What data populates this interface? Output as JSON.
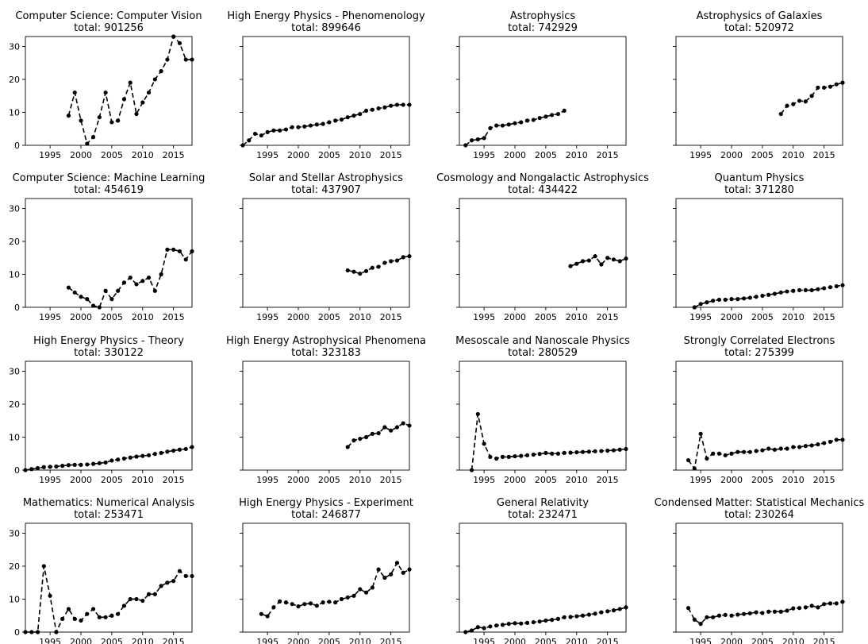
{
  "figure": {
    "yticks": [
      0,
      10,
      20,
      30
    ],
    "xticks": [
      1995,
      2000,
      2005,
      2010,
      2015
    ],
    "style": {
      "line_color": "#000000",
      "line_style": "dashed",
      "marker": "dot"
    }
  },
  "chart_data": [
    {
      "type": "line",
      "title": "Computer Science: Computer Vision",
      "subtitle": "total: 901256",
      "xlim": [
        1991,
        2018
      ],
      "ylim": [
        0,
        33
      ],
      "series": [
        {
          "x": [
            1998,
            1999,
            2000,
            2001,
            2002,
            2003,
            2004,
            2005,
            2006,
            2007,
            2008,
            2009,
            2010,
            2011,
            2012,
            2013,
            2014,
            2015,
            2016,
            2017,
            2018
          ],
          "y": [
            9,
            16,
            7.5,
            0.5,
            2.5,
            8.5,
            16,
            7,
            7.5,
            14,
            19,
            9.5,
            13,
            16,
            20,
            22.5,
            26,
            33,
            31,
            26,
            26
          ]
        }
      ]
    },
    {
      "type": "line",
      "title": "High Energy Physics - Phenomenology",
      "subtitle": "total: 899646",
      "xlim": [
        1991,
        2018
      ],
      "ylim": [
        0,
        33
      ],
      "series": [
        {
          "x": [
            1991,
            1992,
            1993,
            1994,
            1995,
            1996,
            1997,
            1998,
            1999,
            2000,
            2001,
            2002,
            2003,
            2004,
            2005,
            2006,
            2007,
            2008,
            2009,
            2010,
            2011,
            2012,
            2013,
            2014,
            2015,
            2016,
            2017,
            2018
          ],
          "y": [
            0,
            1.5,
            3.5,
            3,
            4,
            4.5,
            4.5,
            4.8,
            5.5,
            5.5,
            5.7,
            6,
            6.3,
            6.5,
            7,
            7.5,
            7.8,
            8.5,
            9,
            9.5,
            10.5,
            10.8,
            11.2,
            11.5,
            12,
            12.3,
            12.3,
            12.3
          ]
        }
      ]
    },
    {
      "type": "line",
      "title": "Astrophysics",
      "subtitle": "total: 742929",
      "xlim": [
        1991,
        2018
      ],
      "ylim": [
        0,
        33
      ],
      "series": [
        {
          "x": [
            1992,
            1993,
            1994,
            1995,
            1996,
            1997,
            1998,
            1999,
            2000,
            2001,
            2002,
            2003,
            2004,
            2005,
            2006,
            2007,
            2008
          ],
          "y": [
            0,
            1.5,
            1.8,
            2.2,
            5.2,
            6,
            6,
            6.3,
            6.7,
            7,
            7.5,
            7.7,
            8.3,
            8.7,
            9.2,
            9.5,
            10.5
          ]
        }
      ]
    },
    {
      "type": "line",
      "title": "Astrophysics of Galaxies",
      "subtitle": "total: 520972",
      "xlim": [
        1991,
        2018
      ],
      "ylim": [
        0,
        33
      ],
      "series": [
        {
          "x": [
            2008,
            2009,
            2010,
            2011,
            2012,
            2013,
            2014,
            2015,
            2016,
            2017,
            2018
          ],
          "y": [
            9.5,
            12,
            12.5,
            13.5,
            13.3,
            15,
            17.5,
            17.5,
            17.8,
            18.5,
            19
          ]
        }
      ]
    },
    {
      "type": "line",
      "title": "Computer Science: Machine Learning",
      "subtitle": "total: 454619",
      "xlim": [
        1991,
        2018
      ],
      "ylim": [
        0,
        33
      ],
      "series": [
        {
          "x": [
            1998,
            1999,
            2000,
            2001,
            2002,
            2003,
            2004,
            2005,
            2006,
            2007,
            2008,
            2009,
            2010,
            2011,
            2012,
            2013,
            2014,
            2015,
            2016,
            2017,
            2018
          ],
          "y": [
            6,
            4.5,
            3.2,
            2.5,
            0.5,
            0,
            5,
            2.5,
            5,
            7.5,
            9,
            7,
            8,
            9,
            5,
            10,
            17.5,
            17.5,
            17,
            14.5,
            17
          ]
        }
      ]
    },
    {
      "type": "line",
      "title": "Solar and Stellar Astrophysics",
      "subtitle": "total: 437907",
      "xlim": [
        1991,
        2018
      ],
      "ylim": [
        0,
        33
      ],
      "series": [
        {
          "x": [
            2008,
            2009,
            2010,
            2011,
            2012,
            2013,
            2014,
            2015,
            2016,
            2017,
            2018
          ],
          "y": [
            11.2,
            10.8,
            10.2,
            11,
            12,
            12.3,
            13.5,
            14,
            14.2,
            15.2,
            15.5
          ]
        }
      ]
    },
    {
      "type": "line",
      "title": "Cosmology and Nongalactic Astrophysics",
      "subtitle": "total: 434422",
      "xlim": [
        1991,
        2018
      ],
      "ylim": [
        0,
        33
      ],
      "series": [
        {
          "x": [
            2009,
            2010,
            2011,
            2012,
            2013,
            2014,
            2015,
            2016,
            2017,
            2018
          ],
          "y": [
            12.5,
            13.2,
            14,
            14.2,
            15.5,
            13,
            15,
            14.5,
            14,
            14.8
          ]
        }
      ]
    },
    {
      "type": "line",
      "title": "Quantum Physics",
      "subtitle": "total: 371280",
      "xlim": [
        1991,
        2018
      ],
      "ylim": [
        0,
        33
      ],
      "series": [
        {
          "x": [
            1994,
            1995,
            1996,
            1997,
            1998,
            1999,
            2000,
            2001,
            2002,
            2003,
            2004,
            2005,
            2006,
            2007,
            2008,
            2009,
            2010,
            2011,
            2012,
            2013,
            2014,
            2015,
            2016,
            2017,
            2018
          ],
          "y": [
            0,
            1,
            1.5,
            2,
            2.3,
            2.3,
            2.5,
            2.5,
            2.7,
            2.9,
            3.2,
            3.5,
            3.8,
            4.1,
            4.5,
            4.8,
            5,
            5.2,
            5.2,
            5.2,
            5.5,
            5.8,
            6.1,
            6.4,
            6.7
          ]
        }
      ]
    },
    {
      "type": "line",
      "title": "High Energy Physics - Theory",
      "subtitle": "total: 330122",
      "xlim": [
        1991,
        2018
      ],
      "ylim": [
        0,
        33
      ],
      "series": [
        {
          "x": [
            1991,
            1992,
            1993,
            1994,
            1995,
            1996,
            1997,
            1998,
            1999,
            2000,
            2001,
            2002,
            2003,
            2004,
            2005,
            2006,
            2007,
            2008,
            2009,
            2010,
            2011,
            2012,
            2013,
            2014,
            2015,
            2016,
            2017,
            2018
          ],
          "y": [
            0,
            0.3,
            0.6,
            0.9,
            1,
            1.1,
            1.3,
            1.5,
            1.6,
            1.6,
            1.7,
            1.9,
            2.1,
            2.3,
            2.9,
            3.2,
            3.5,
            3.8,
            4.1,
            4.3,
            4.5,
            4.9,
            5.2,
            5.6,
            5.9,
            6.2,
            6.4,
            7
          ]
        }
      ]
    },
    {
      "type": "line",
      "title": "High Energy Astrophysical Phenomena",
      "subtitle": "total: 323183",
      "xlim": [
        1991,
        2018
      ],
      "ylim": [
        0,
        33
      ],
      "series": [
        {
          "x": [
            2008,
            2009,
            2010,
            2011,
            2012,
            2013,
            2014,
            2015,
            2016,
            2017,
            2018
          ],
          "y": [
            7,
            9,
            9.5,
            10,
            11,
            11.2,
            13,
            12,
            13,
            14.2,
            13.5
          ]
        }
      ]
    },
    {
      "type": "line",
      "title": "Mesoscale and Nanoscale Physics",
      "subtitle": "total: 280529",
      "xlim": [
        1991,
        2018
      ],
      "ylim": [
        0,
        33
      ],
      "series": [
        {
          "x": [
            1993,
            1994,
            1995,
            1996,
            1997,
            1998,
            1999,
            2000,
            2001,
            2002,
            2003,
            2004,
            2005,
            2006,
            2007,
            2008,
            2009,
            2010,
            2011,
            2012,
            2013,
            2014,
            2015,
            2016,
            2017,
            2018
          ],
          "y": [
            0,
            17,
            8,
            4,
            3.5,
            4,
            4,
            4.2,
            4.3,
            4.5,
            4.7,
            4.9,
            5.2,
            5,
            5,
            5.2,
            5.3,
            5.4,
            5.5,
            5.6,
            5.7,
            5.8,
            5.9,
            6,
            6.2,
            6.4
          ]
        }
      ]
    },
    {
      "type": "line",
      "title": "Strongly Correlated Electrons",
      "subtitle": "total: 275399",
      "xlim": [
        1991,
        2018
      ],
      "ylim": [
        0,
        33
      ],
      "series": [
        {
          "x": [
            1993,
            1994,
            1995,
            1996,
            1997,
            1998,
            1999,
            2000,
            2001,
            2002,
            2003,
            2004,
            2005,
            2006,
            2007,
            2008,
            2009,
            2010,
            2011,
            2012,
            2013,
            2014,
            2015,
            2016,
            2017,
            2018
          ],
          "y": [
            3,
            0.5,
            11,
            3.5,
            5,
            5,
            4.5,
            5,
            5.5,
            5.5,
            5.5,
            5.8,
            6,
            6.5,
            6.2,
            6.5,
            6.5,
            7,
            7,
            7.3,
            7.5,
            7.8,
            8.2,
            8.6,
            9.2,
            9.2
          ]
        }
      ]
    },
    {
      "type": "line",
      "title": "Mathematics: Numerical Analysis",
      "subtitle": "total: 253471",
      "xlim": [
        1991,
        2018
      ],
      "ylim": [
        0,
        33
      ],
      "series": [
        {
          "x": [
            1991,
            1992,
            1993,
            1994,
            1995,
            1996,
            1997,
            1998,
            1999,
            2000,
            2001,
            2002,
            2003,
            2004,
            2005,
            2006,
            2007,
            2008,
            2009,
            2010,
            2011,
            2012,
            2013,
            2014,
            2015,
            2016,
            2017,
            2018
          ],
          "y": [
            0,
            0,
            0,
            20,
            11,
            0,
            4,
            7,
            4,
            3.5,
            5.5,
            7,
            4.5,
            4.5,
            5,
            5.5,
            8,
            10,
            10,
            9.5,
            11.5,
            11.5,
            14,
            15,
            15.5,
            18.5,
            17,
            17
          ]
        }
      ]
    },
    {
      "type": "line",
      "title": "High Energy Physics - Experiment",
      "subtitle": "total: 246877",
      "xlim": [
        1991,
        2018
      ],
      "ylim": [
        0,
        33
      ],
      "series": [
        {
          "x": [
            1994,
            1995,
            1996,
            1997,
            1998,
            1999,
            2000,
            2001,
            2002,
            2003,
            2004,
            2005,
            2006,
            2007,
            2008,
            2009,
            2010,
            2011,
            2012,
            2013,
            2014,
            2015,
            2016,
            2017,
            2018
          ],
          "y": [
            5.5,
            4.8,
            7.5,
            9.3,
            9,
            8.5,
            7.8,
            8.5,
            8.7,
            8,
            9,
            9.2,
            9,
            10,
            10.5,
            11,
            13,
            12,
            13.5,
            19,
            16.5,
            17.5,
            21,
            18,
            19
          ]
        }
      ]
    },
    {
      "type": "line",
      "title": "General Relativity",
      "subtitle": "total: 232471",
      "xlim": [
        1991,
        2018
      ],
      "ylim": [
        0,
        33
      ],
      "series": [
        {
          "x": [
            1992,
            1993,
            1994,
            1995,
            1996,
            1997,
            1998,
            1999,
            2000,
            2001,
            2002,
            2003,
            2004,
            2005,
            2006,
            2007,
            2008,
            2009,
            2010,
            2011,
            2012,
            2013,
            2014,
            2015,
            2016,
            2017,
            2018
          ],
          "y": [
            0,
            0.5,
            1.5,
            1.2,
            1.7,
            2,
            2.2,
            2.5,
            2.7,
            2.6,
            2.8,
            3,
            3.2,
            3.5,
            3.7,
            4,
            4.5,
            4.6,
            4.8,
            5,
            5.3,
            5.6,
            6,
            6.3,
            6.6,
            7,
            7.5
          ]
        }
      ]
    },
    {
      "type": "line",
      "title": "Condensed Matter: Statistical Mechanics",
      "subtitle": "total: 230264",
      "xlim": [
        1991,
        2018
      ],
      "ylim": [
        0,
        33
      ],
      "series": [
        {
          "x": [
            1993,
            1994,
            1995,
            1996,
            1997,
            1998,
            1999,
            2000,
            2001,
            2002,
            2003,
            2004,
            2005,
            2006,
            2007,
            2008,
            2009,
            2010,
            2011,
            2012,
            2013,
            2014,
            2015,
            2016,
            2017,
            2018
          ],
          "y": [
            7.3,
            3.8,
            2.5,
            4.5,
            4.5,
            5,
            5.2,
            5,
            5.3,
            5.5,
            5.7,
            6,
            5.8,
            6.2,
            6.2,
            6.2,
            6.5,
            7.2,
            7.3,
            7.5,
            8,
            7.5,
            8.5,
            8.7,
            8.7,
            9.2
          ]
        }
      ]
    }
  ]
}
